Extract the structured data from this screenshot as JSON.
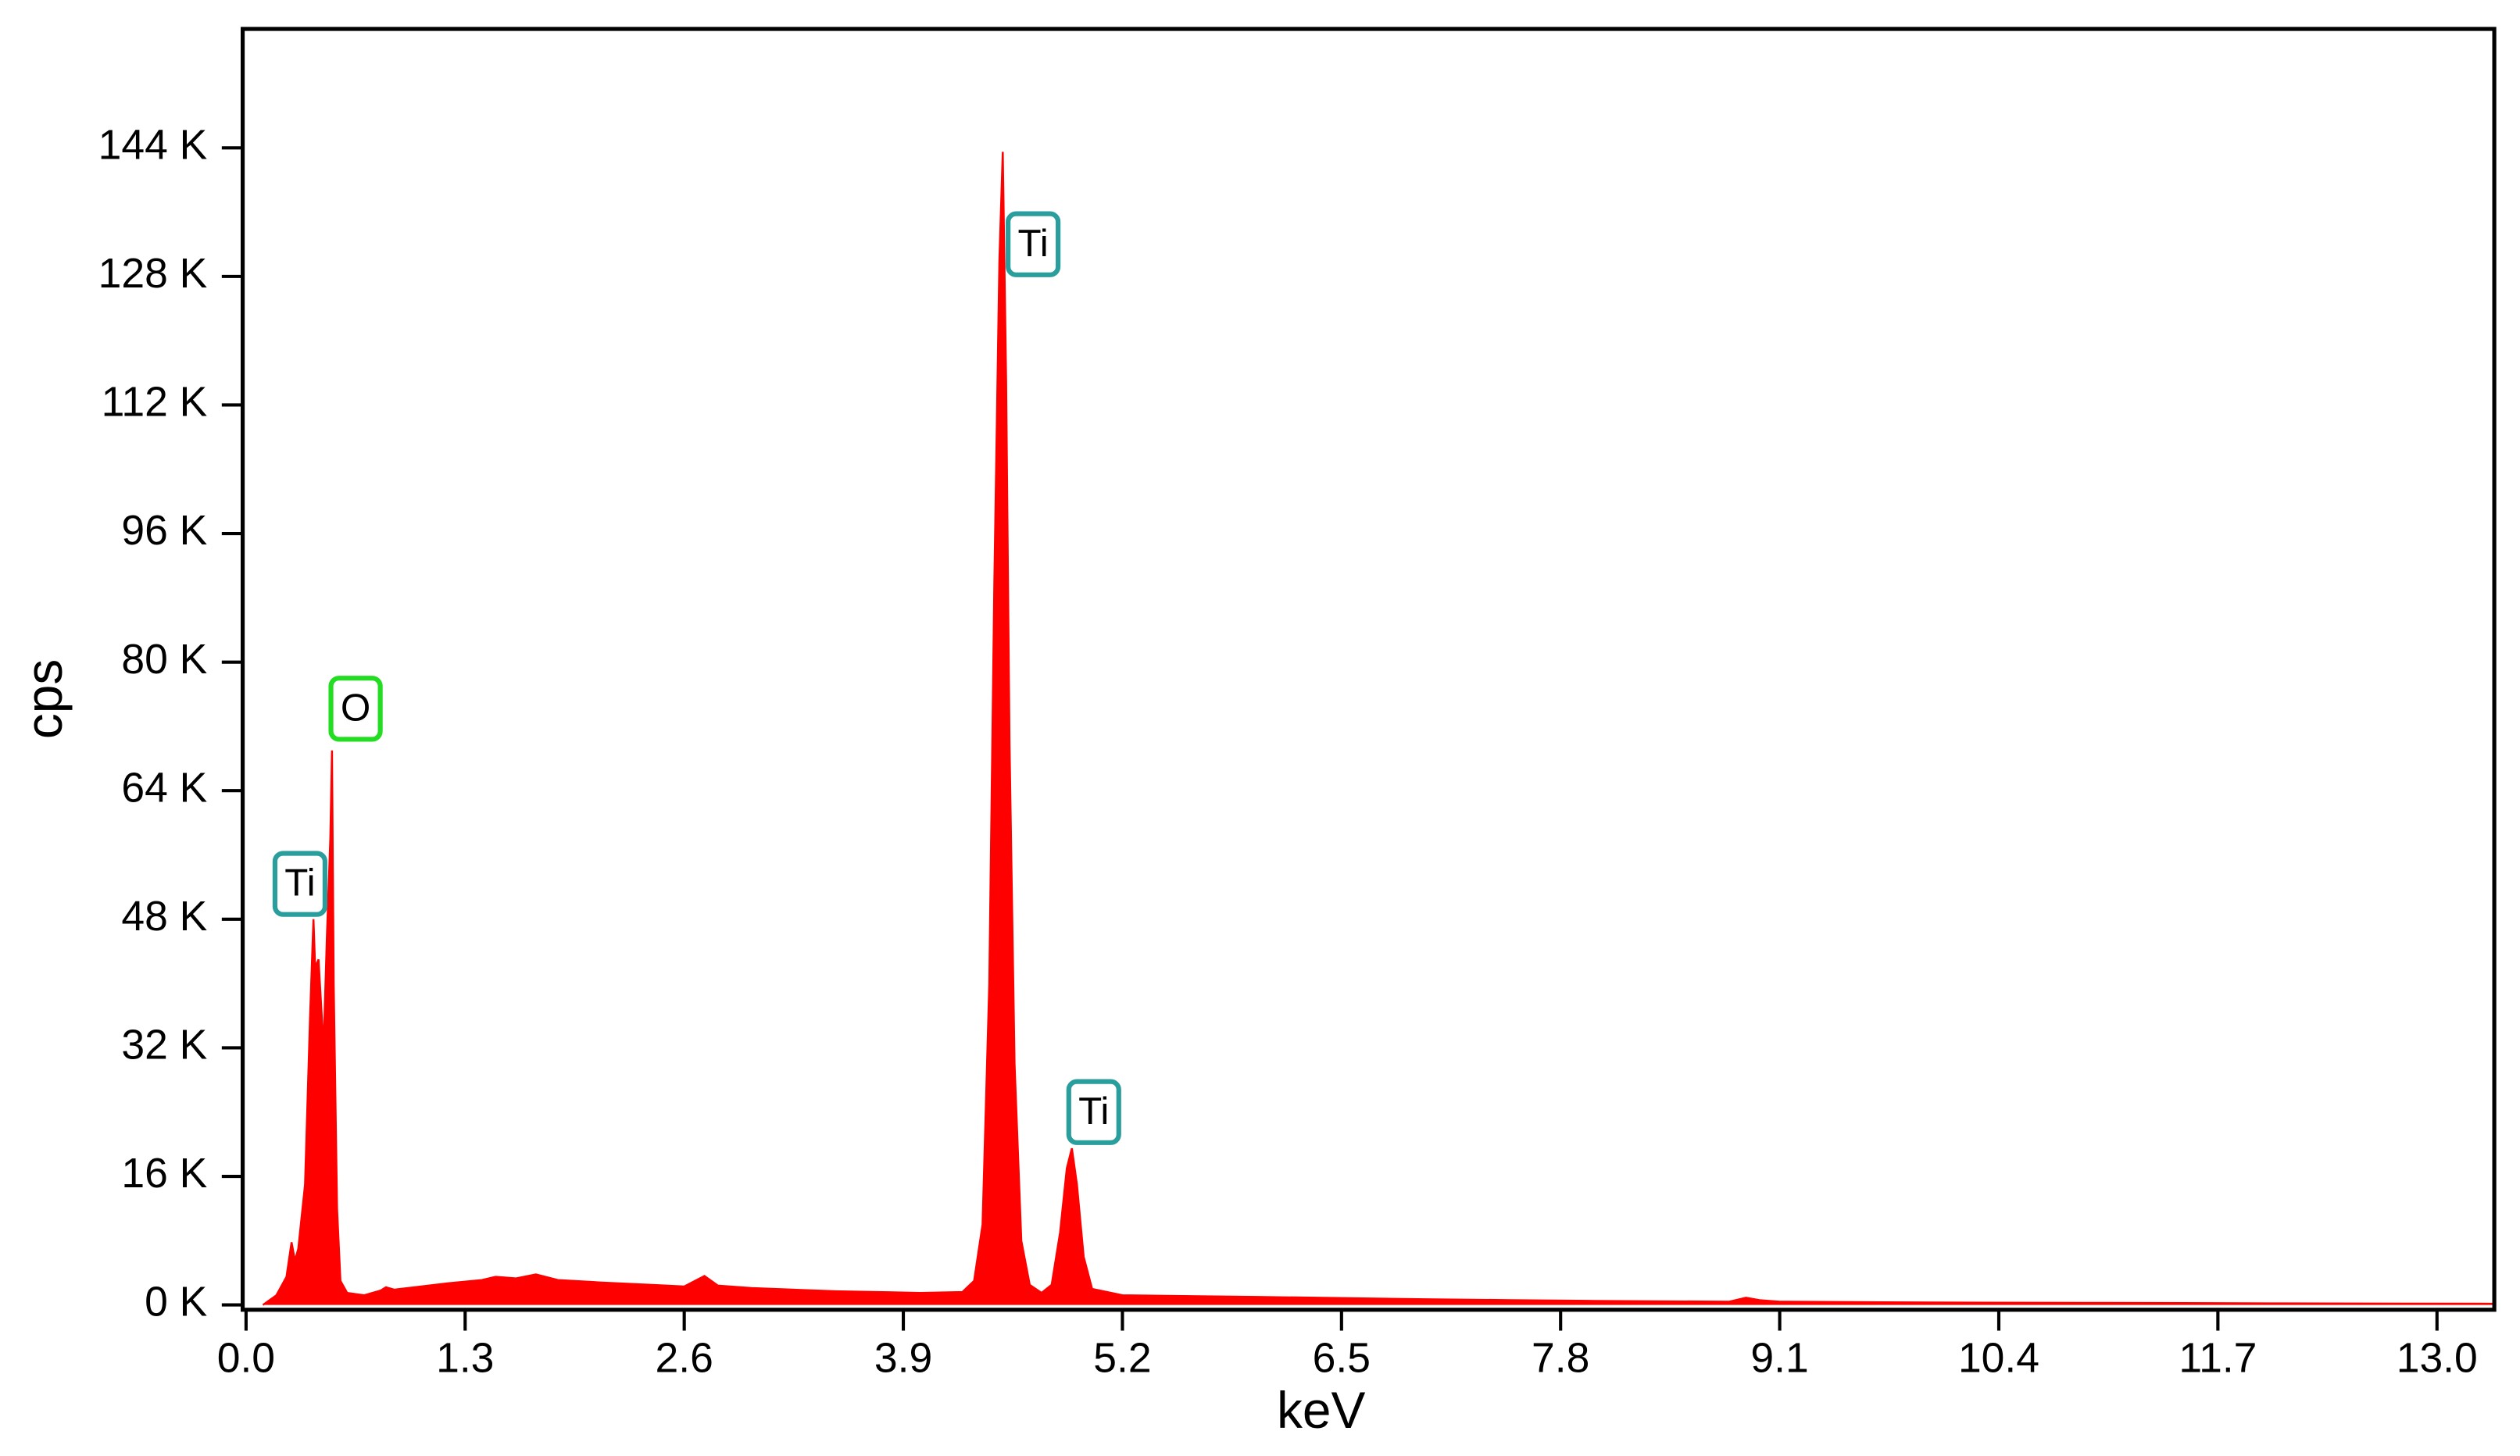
{
  "chart_data": {
    "type": "area",
    "x_label": "keV",
    "y_label": "cps",
    "color": "#ff0000",
    "x": [
      0.1,
      0.18,
      0.24,
      0.27,
      0.29,
      0.31,
      0.35,
      0.38,
      0.4,
      0.41,
      0.43,
      0.46,
      0.48,
      0.5,
      0.51,
      0.52,
      0.54,
      0.56,
      0.6,
      0.7,
      0.8,
      0.83,
      0.88,
      1.0,
      1.2,
      1.4,
      1.48,
      1.6,
      1.72,
      1.85,
      2.1,
      2.4,
      2.6,
      2.72,
      2.8,
      3.0,
      3.5,
      4.0,
      4.25,
      4.32,
      4.37,
      4.41,
      4.44,
      4.47,
      4.49,
      4.51,
      4.53,
      4.56,
      4.6,
      4.65,
      4.72,
      4.78,
      4.83,
      4.87,
      4.9,
      4.93,
      4.97,
      5.02,
      5.2,
      6.0,
      7.0,
      7.5,
      8.0,
      8.8,
      8.9,
      8.98,
      9.1,
      10.0,
      11.0,
      12.0,
      13.34
    ],
    "values": [
      0,
      1200,
      3500,
      7800,
      5500,
      7000,
      15000,
      36000,
      48000,
      42000,
      43000,
      32000,
      46000,
      58000,
      69000,
      40000,
      12000,
      3000,
      1500,
      1200,
      1800,
      2200,
      1900,
      2200,
      2700,
      3100,
      3500,
      3300,
      3800,
      3100,
      2800,
      2500,
      2300,
      3600,
      2400,
      2100,
      1700,
      1500,
      1600,
      3000,
      10000,
      40000,
      90000,
      130000,
      143500,
      115000,
      70000,
      30000,
      8000,
      2500,
      1500,
      2500,
      9000,
      17000,
      19500,
      15000,
      6000,
      2000,
      1200,
      1000,
      700,
      600,
      500,
      400,
      900,
      600,
      400,
      300,
      250,
      200,
      150
    ],
    "xlim": [
      -0.02,
      13.34
    ],
    "ylim": [
      -600,
      158800
    ],
    "xticks": [
      {
        "value": 0,
        "label": "0.0"
      },
      1.3,
      2.6,
      3.9,
      5.2,
      6.5,
      7.8,
      9.1,
      10.4,
      11.7,
      {
        "value": 13,
        "label": "13.0"
      }
    ],
    "yticks": [
      {
        "value": 0,
        "label": "0 K"
      },
      {
        "value": 16000,
        "label": "16 K"
      },
      {
        "value": 32000,
        "label": "32 K"
      },
      {
        "value": 48000,
        "label": "48 K"
      },
      {
        "value": 64000,
        "label": "64 K"
      },
      {
        "value": 80000,
        "label": "80 K"
      },
      {
        "value": 96000,
        "label": "96 K"
      },
      {
        "value": 112000,
        "label": "112 K"
      },
      {
        "value": 128000,
        "label": "128 K"
      },
      {
        "value": 144000,
        "label": "144 K"
      }
    ],
    "annotations": [
      {
        "text": "Ti",
        "x": 0.32,
        "y": 52400,
        "color": "#2a9d9d"
      },
      {
        "text": "O",
        "x": 0.65,
        "y": 74200,
        "color": "#22dd22"
      },
      {
        "text": "Ti",
        "x": 4.67,
        "y": 132000,
        "color": "#2a9d9d"
      },
      {
        "text": "Ti",
        "x": 5.03,
        "y": 24000,
        "color": "#2a9d9d"
      }
    ]
  }
}
